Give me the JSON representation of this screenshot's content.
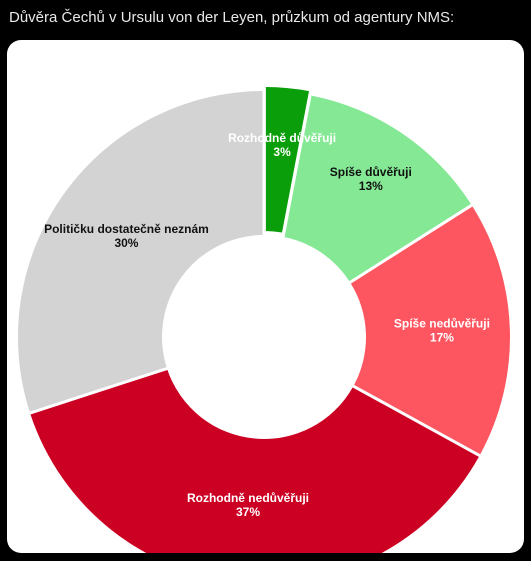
{
  "post": {
    "caption": "Důvěra Čechů v Ursulu von der Leyen, průzkum od agentury NMS:"
  },
  "chart_data": {
    "type": "pie",
    "donut": true,
    "unit": "%",
    "categories": [
      "Rozhodně důvěřuji",
      "Spíše důvěřuji",
      "Spíše nedůvěřuji",
      "Rozhodně nedůvěřuji",
      "Političku dostatečně neznám"
    ],
    "values": [
      3,
      13,
      17,
      37,
      30
    ],
    "colors": [
      "#0a9e0a",
      "#84e894",
      "#fe5660",
      "#cc0022",
      "#d3d3d3"
    ],
    "label_colors": [
      "#ffffff",
      "#111111",
      "#ffffff",
      "#ffffff",
      "#111111"
    ],
    "value_labels": [
      "3%",
      "13%",
      "17%",
      "37%",
      "30%"
    ]
  }
}
